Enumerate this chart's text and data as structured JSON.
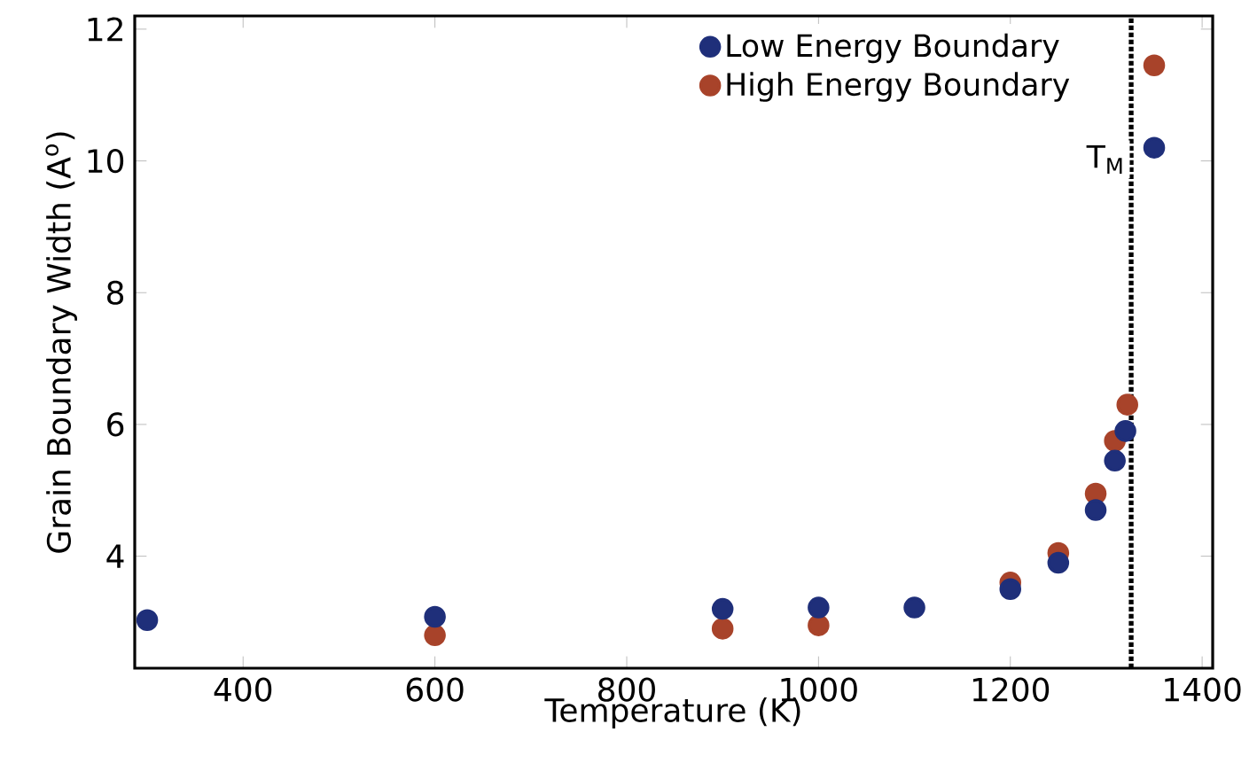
{
  "chart_data": {
    "type": "scatter",
    "xlabel": "Temperature (K)",
    "ylabel": "Grain Boundary Width (A$^{o}$)",
    "xlim": [
      287,
      1411
    ],
    "ylim": [
      2.3,
      12.2
    ],
    "xticks": [
      400,
      600,
      800,
      1000,
      1200,
      1400
    ],
    "yticks": [
      4,
      6,
      8,
      10,
      12
    ],
    "marker": "circle",
    "legend": "top right",
    "series": [
      {
        "name": "Low Energy Boundary",
        "color": "#1f2f7a",
        "x": [
          300,
          600,
          900,
          1000,
          1100,
          1200,
          1250,
          1289,
          1309,
          1320,
          1350
        ],
        "values": [
          3.03,
          3.08,
          3.2,
          3.22,
          3.22,
          3.5,
          3.9,
          4.7,
          5.45,
          5.9,
          10.2
        ]
      },
      {
        "name": "High Energy Boundary",
        "color": "#a8432a",
        "x": [
          600,
          900,
          1000,
          1200,
          1250,
          1289,
          1309,
          1322,
          1350
        ],
        "values": [
          2.8,
          2.9,
          2.95,
          3.6,
          4.05,
          4.95,
          5.75,
          6.3,
          11.45
        ]
      }
    ],
    "ref_lines": [
      {
        "axis": "x",
        "value": 1326,
        "label": "T$_{M}$",
        "line_style": "dotted"
      }
    ]
  }
}
